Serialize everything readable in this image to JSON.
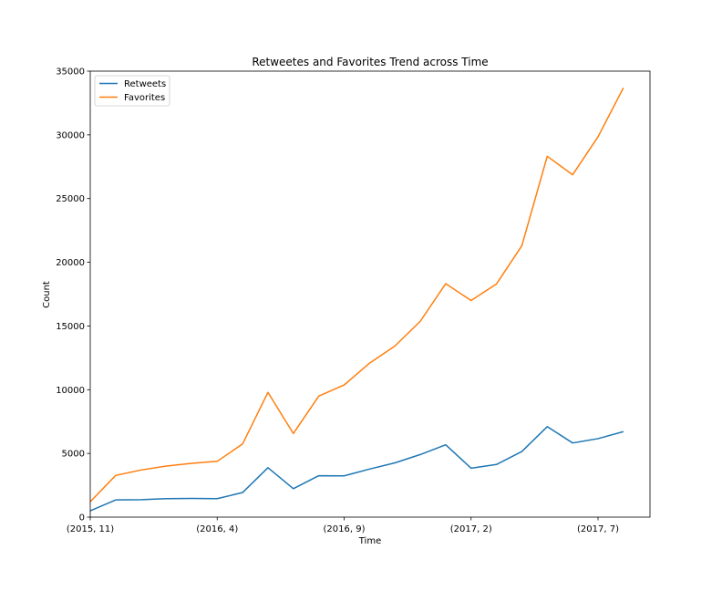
{
  "chart_data": {
    "type": "line",
    "title": "Retweetes and Favorites Trend across Time",
    "xlabel": "Time",
    "ylabel": "Count",
    "x": [
      "(2015, 11)",
      "(2015, 12)",
      "(2016, 1)",
      "(2016, 2)",
      "(2016, 3)",
      "(2016, 4)",
      "(2016, 5)",
      "(2016, 6)",
      "(2016, 7)",
      "(2016, 8)",
      "(2016, 9)",
      "(2016, 10)",
      "(2016, 11)",
      "(2016, 12)",
      "(2017, 1)",
      "(2017, 2)",
      "(2017, 3)",
      "(2017, 4)",
      "(2017, 5)",
      "(2017, 6)",
      "(2017, 7)",
      "(2017, 8)"
    ],
    "xticks": [
      "(2015, 11)",
      "(2016, 4)",
      "(2016, 9)",
      "(2017, 2)",
      "(2017, 7)"
    ],
    "ylim": [
      0,
      35000
    ],
    "yticks": [
      0,
      5000,
      10000,
      15000,
      20000,
      25000,
      30000,
      35000
    ],
    "legend_position": "top-left",
    "grid": false,
    "series": [
      {
        "name": "Retweets",
        "color": "#1f77b4",
        "values": [
          500,
          1350,
          1370,
          1450,
          1470,
          1450,
          1930,
          3880,
          2230,
          3250,
          3240,
          3770,
          4260,
          4910,
          5680,
          3840,
          4130,
          5150,
          7100,
          5820,
          6160,
          6710
        ]
      },
      {
        "name": "Favorites",
        "color": "#ff7f0e",
        "values": [
          1210,
          3270,
          3700,
          4010,
          4220,
          4380,
          5740,
          9790,
          6560,
          9500,
          10370,
          12080,
          13430,
          15370,
          18320,
          17000,
          18300,
          21300,
          28320,
          26870,
          29850,
          33690
        ]
      }
    ]
  }
}
